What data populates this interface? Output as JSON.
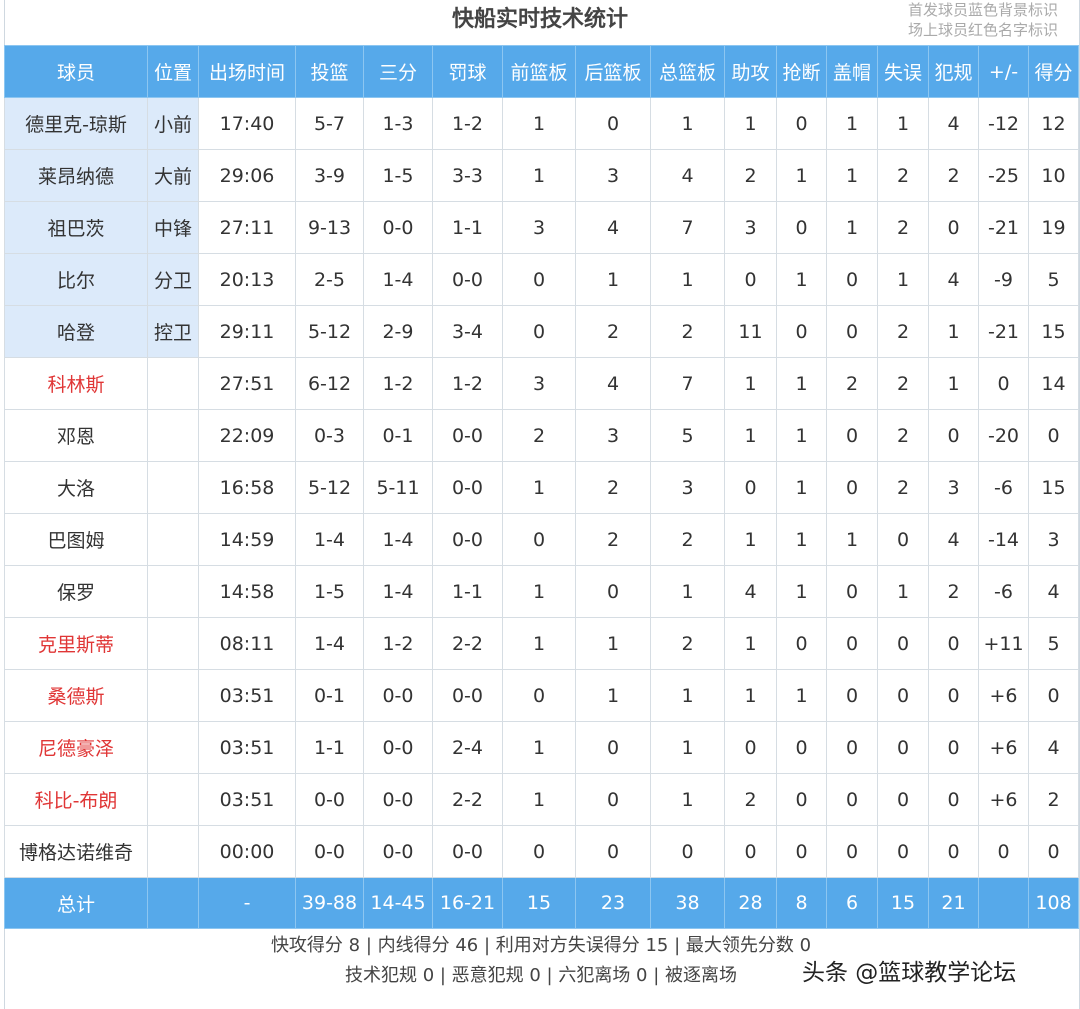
{
  "title": "快船实时技术统计",
  "notes": [
    "首发球员蓝色背景标识",
    "场上球员红色名字标识"
  ],
  "headers": [
    "球员",
    "位置",
    "出场时间",
    "投篮",
    "三分",
    "罚球",
    "前篮板",
    "后篮板",
    "总篮板",
    "助攻",
    "抢断",
    "盖帽",
    "失误",
    "犯规",
    "+/-",
    "得分"
  ],
  "colors": {
    "header_bg": "#56a9ea",
    "starter_bg": "#dceafa",
    "on_court_name": "#e03636"
  },
  "players": [
    {
      "cells": [
        "德里克-琼斯",
        "小前",
        "17:40",
        "5-7",
        "1-3",
        "1-2",
        "1",
        "0",
        "1",
        "1",
        "0",
        "1",
        "1",
        "4",
        "-12",
        "12"
      ],
      "starter": true,
      "on_court": false
    },
    {
      "cells": [
        "莱昂纳德",
        "大前",
        "29:06",
        "3-9",
        "1-5",
        "3-3",
        "1",
        "3",
        "4",
        "2",
        "1",
        "1",
        "2",
        "2",
        "-25",
        "10"
      ],
      "starter": true,
      "on_court": false
    },
    {
      "cells": [
        "祖巴茨",
        "中锋",
        "27:11",
        "9-13",
        "0-0",
        "1-1",
        "3",
        "4",
        "7",
        "3",
        "0",
        "1",
        "2",
        "0",
        "-21",
        "19"
      ],
      "starter": true,
      "on_court": false
    },
    {
      "cells": [
        "比尔",
        "分卫",
        "20:13",
        "2-5",
        "1-4",
        "0-0",
        "0",
        "1",
        "1",
        "0",
        "1",
        "0",
        "1",
        "4",
        "-9",
        "5"
      ],
      "starter": true,
      "on_court": false
    },
    {
      "cells": [
        "哈登",
        "控卫",
        "29:11",
        "5-12",
        "2-9",
        "3-4",
        "0",
        "2",
        "2",
        "11",
        "0",
        "0",
        "2",
        "1",
        "-21",
        "15"
      ],
      "starter": true,
      "on_court": false
    },
    {
      "cells": [
        "科林斯",
        "",
        "27:51",
        "6-12",
        "1-2",
        "1-2",
        "3",
        "4",
        "7",
        "1",
        "1",
        "2",
        "2",
        "1",
        "0",
        "14"
      ],
      "starter": false,
      "on_court": true
    },
    {
      "cells": [
        "邓恩",
        "",
        "22:09",
        "0-3",
        "0-1",
        "0-0",
        "2",
        "3",
        "5",
        "1",
        "1",
        "0",
        "2",
        "0",
        "-20",
        "0"
      ],
      "starter": false,
      "on_court": false
    },
    {
      "cells": [
        "大洛",
        "",
        "16:58",
        "5-12",
        "5-11",
        "0-0",
        "1",
        "2",
        "3",
        "0",
        "1",
        "0",
        "2",
        "3",
        "-6",
        "15"
      ],
      "starter": false,
      "on_court": false
    },
    {
      "cells": [
        "巴图姆",
        "",
        "14:59",
        "1-4",
        "1-4",
        "0-0",
        "0",
        "2",
        "2",
        "1",
        "1",
        "1",
        "0",
        "4",
        "-14",
        "3"
      ],
      "starter": false,
      "on_court": false
    },
    {
      "cells": [
        "保罗",
        "",
        "14:58",
        "1-5",
        "1-4",
        "1-1",
        "1",
        "0",
        "1",
        "4",
        "1",
        "0",
        "1",
        "2",
        "-6",
        "4"
      ],
      "starter": false,
      "on_court": false
    },
    {
      "cells": [
        "克里斯蒂",
        "",
        "08:11",
        "1-4",
        "1-2",
        "2-2",
        "1",
        "1",
        "2",
        "1",
        "0",
        "0",
        "0",
        "0",
        "+11",
        "5"
      ],
      "starter": false,
      "on_court": true
    },
    {
      "cells": [
        "桑德斯",
        "",
        "03:51",
        "0-1",
        "0-0",
        "0-0",
        "0",
        "1",
        "1",
        "1",
        "1",
        "0",
        "0",
        "0",
        "+6",
        "0"
      ],
      "starter": false,
      "on_court": true
    },
    {
      "cells": [
        "尼德豪泽",
        "",
        "03:51",
        "1-1",
        "0-0",
        "2-4",
        "1",
        "0",
        "1",
        "0",
        "0",
        "0",
        "0",
        "0",
        "+6",
        "4"
      ],
      "starter": false,
      "on_court": true
    },
    {
      "cells": [
        "科比-布朗",
        "",
        "03:51",
        "0-0",
        "0-0",
        "2-2",
        "1",
        "0",
        "1",
        "2",
        "0",
        "0",
        "0",
        "0",
        "+6",
        "2"
      ],
      "starter": false,
      "on_court": true
    },
    {
      "cells": [
        "博格达诺维奇",
        "",
        "00:00",
        "0-0",
        "0-0",
        "0-0",
        "0",
        "0",
        "0",
        "0",
        "0",
        "0",
        "0",
        "0",
        "0",
        "0"
      ],
      "starter": false,
      "on_court": false
    }
  ],
  "total": [
    "总计",
    "",
    "-",
    "39-88",
    "14-45",
    "16-21",
    "15",
    "23",
    "38",
    "28",
    "8",
    "6",
    "15",
    "21",
    "",
    "108"
  ],
  "footer": [
    "快攻得分 8 | 内线得分 46 | 利用对方失误得分 15 | 最大领先分数 0",
    "技术犯规 0 | 恶意犯规 0 | 六犯离场 0 | 被逐离场"
  ],
  "watermark": "头条 @篮球教学论坛"
}
